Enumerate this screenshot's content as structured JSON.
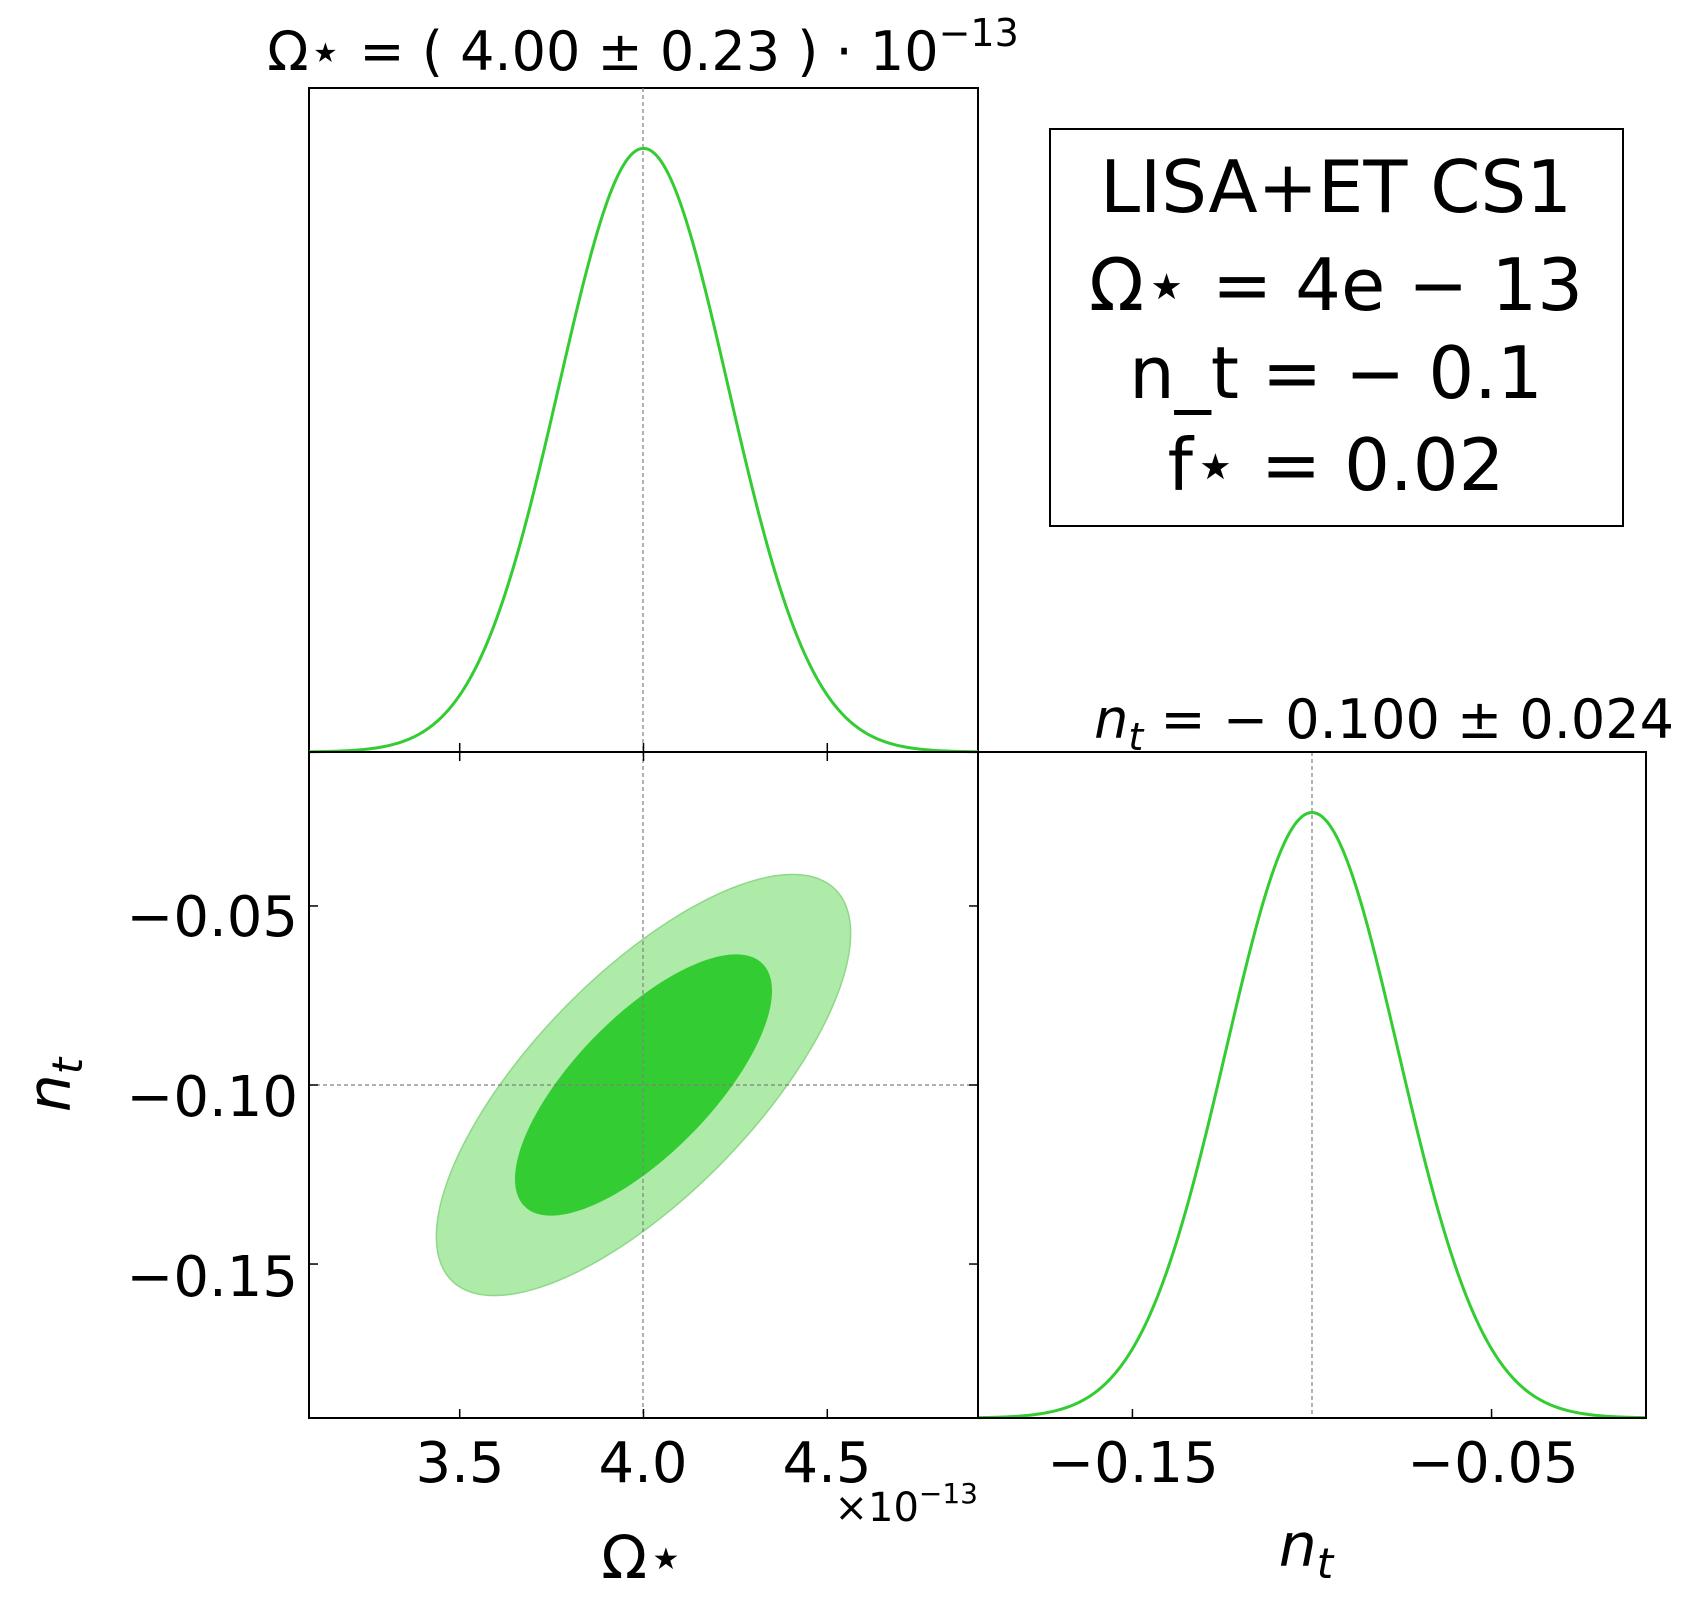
{
  "chart_data": [
    {
      "type": "line",
      "panel": "Omega_star 1D marginal",
      "title": "Ω⋆ = ( 4.00 ± 0.23 ) · 10⁻¹³",
      "x_param": "Ω⋆",
      "x_unit_multiplier": "×10⁻¹³",
      "series": [
        {
          "type": "gaussian",
          "mean": 4.0,
          "sigma": 0.23,
          "peak": 1.0,
          "color": "#33cc33"
        }
      ],
      "xlim": [
        3.09,
        4.91
      ],
      "ylim": [
        0,
        1.1
      ],
      "reference_x": 4.0
    },
    {
      "type": "area",
      "panel": "Omega_star vs n_t 2D contours",
      "xlabel": "Ω⋆",
      "ylabel": "n_t",
      "x_offset_label": "×10⁻¹³",
      "xticks": [
        "3.5",
        "4.0",
        "4.5"
      ],
      "xtick_values": [
        3.5,
        4.0,
        4.5
      ],
      "yticks": [
        "−0.05",
        "−0.10",
        "−0.15"
      ],
      "ytick_values": [
        -0.05,
        -0.1,
        -0.15
      ],
      "xlim": [
        3.09,
        4.91
      ],
      "ylim": [
        -0.193,
        -0.007
      ],
      "mean": [
        4.0,
        -0.1
      ],
      "sigma": [
        0.23,
        0.024
      ],
      "correlation": 0.72,
      "contours": [
        {
          "level": "68%",
          "k": 1.52,
          "color": "#33cc33"
        },
        {
          "level": "95%",
          "k": 2.45,
          "color": "#aeeaa8"
        }
      ],
      "reference_x": 4.0,
      "reference_y": -0.1
    },
    {
      "type": "line",
      "panel": "n_t 1D marginal",
      "title": "n_t = − 0.100 ± 0.024",
      "xlabel": "n_t",
      "xticks": [
        "−0.15",
        "−0.05"
      ],
      "xtick_values": [
        -0.15,
        -0.05
      ],
      "series": [
        {
          "type": "gaussian",
          "mean": -0.1,
          "sigma": 0.024,
          "peak": 1.0,
          "color": "#33cc33"
        }
      ],
      "xlim": [
        -0.193,
        -0.007
      ],
      "ylim": [
        0,
        1.1
      ],
      "reference_x": -0.1
    }
  ],
  "legend": {
    "lines": [
      "LISA+ET CS1",
      "Ω⋆ = 4e − 13",
      "n_t = − 0.1",
      "f⋆ = 0.02"
    ],
    "placement": "top-right"
  },
  "colors": {
    "line": "#33cc33",
    "contour_inner": "#33cc33",
    "contour_outer": "#aeeaa8",
    "reference": "#808080"
  }
}
